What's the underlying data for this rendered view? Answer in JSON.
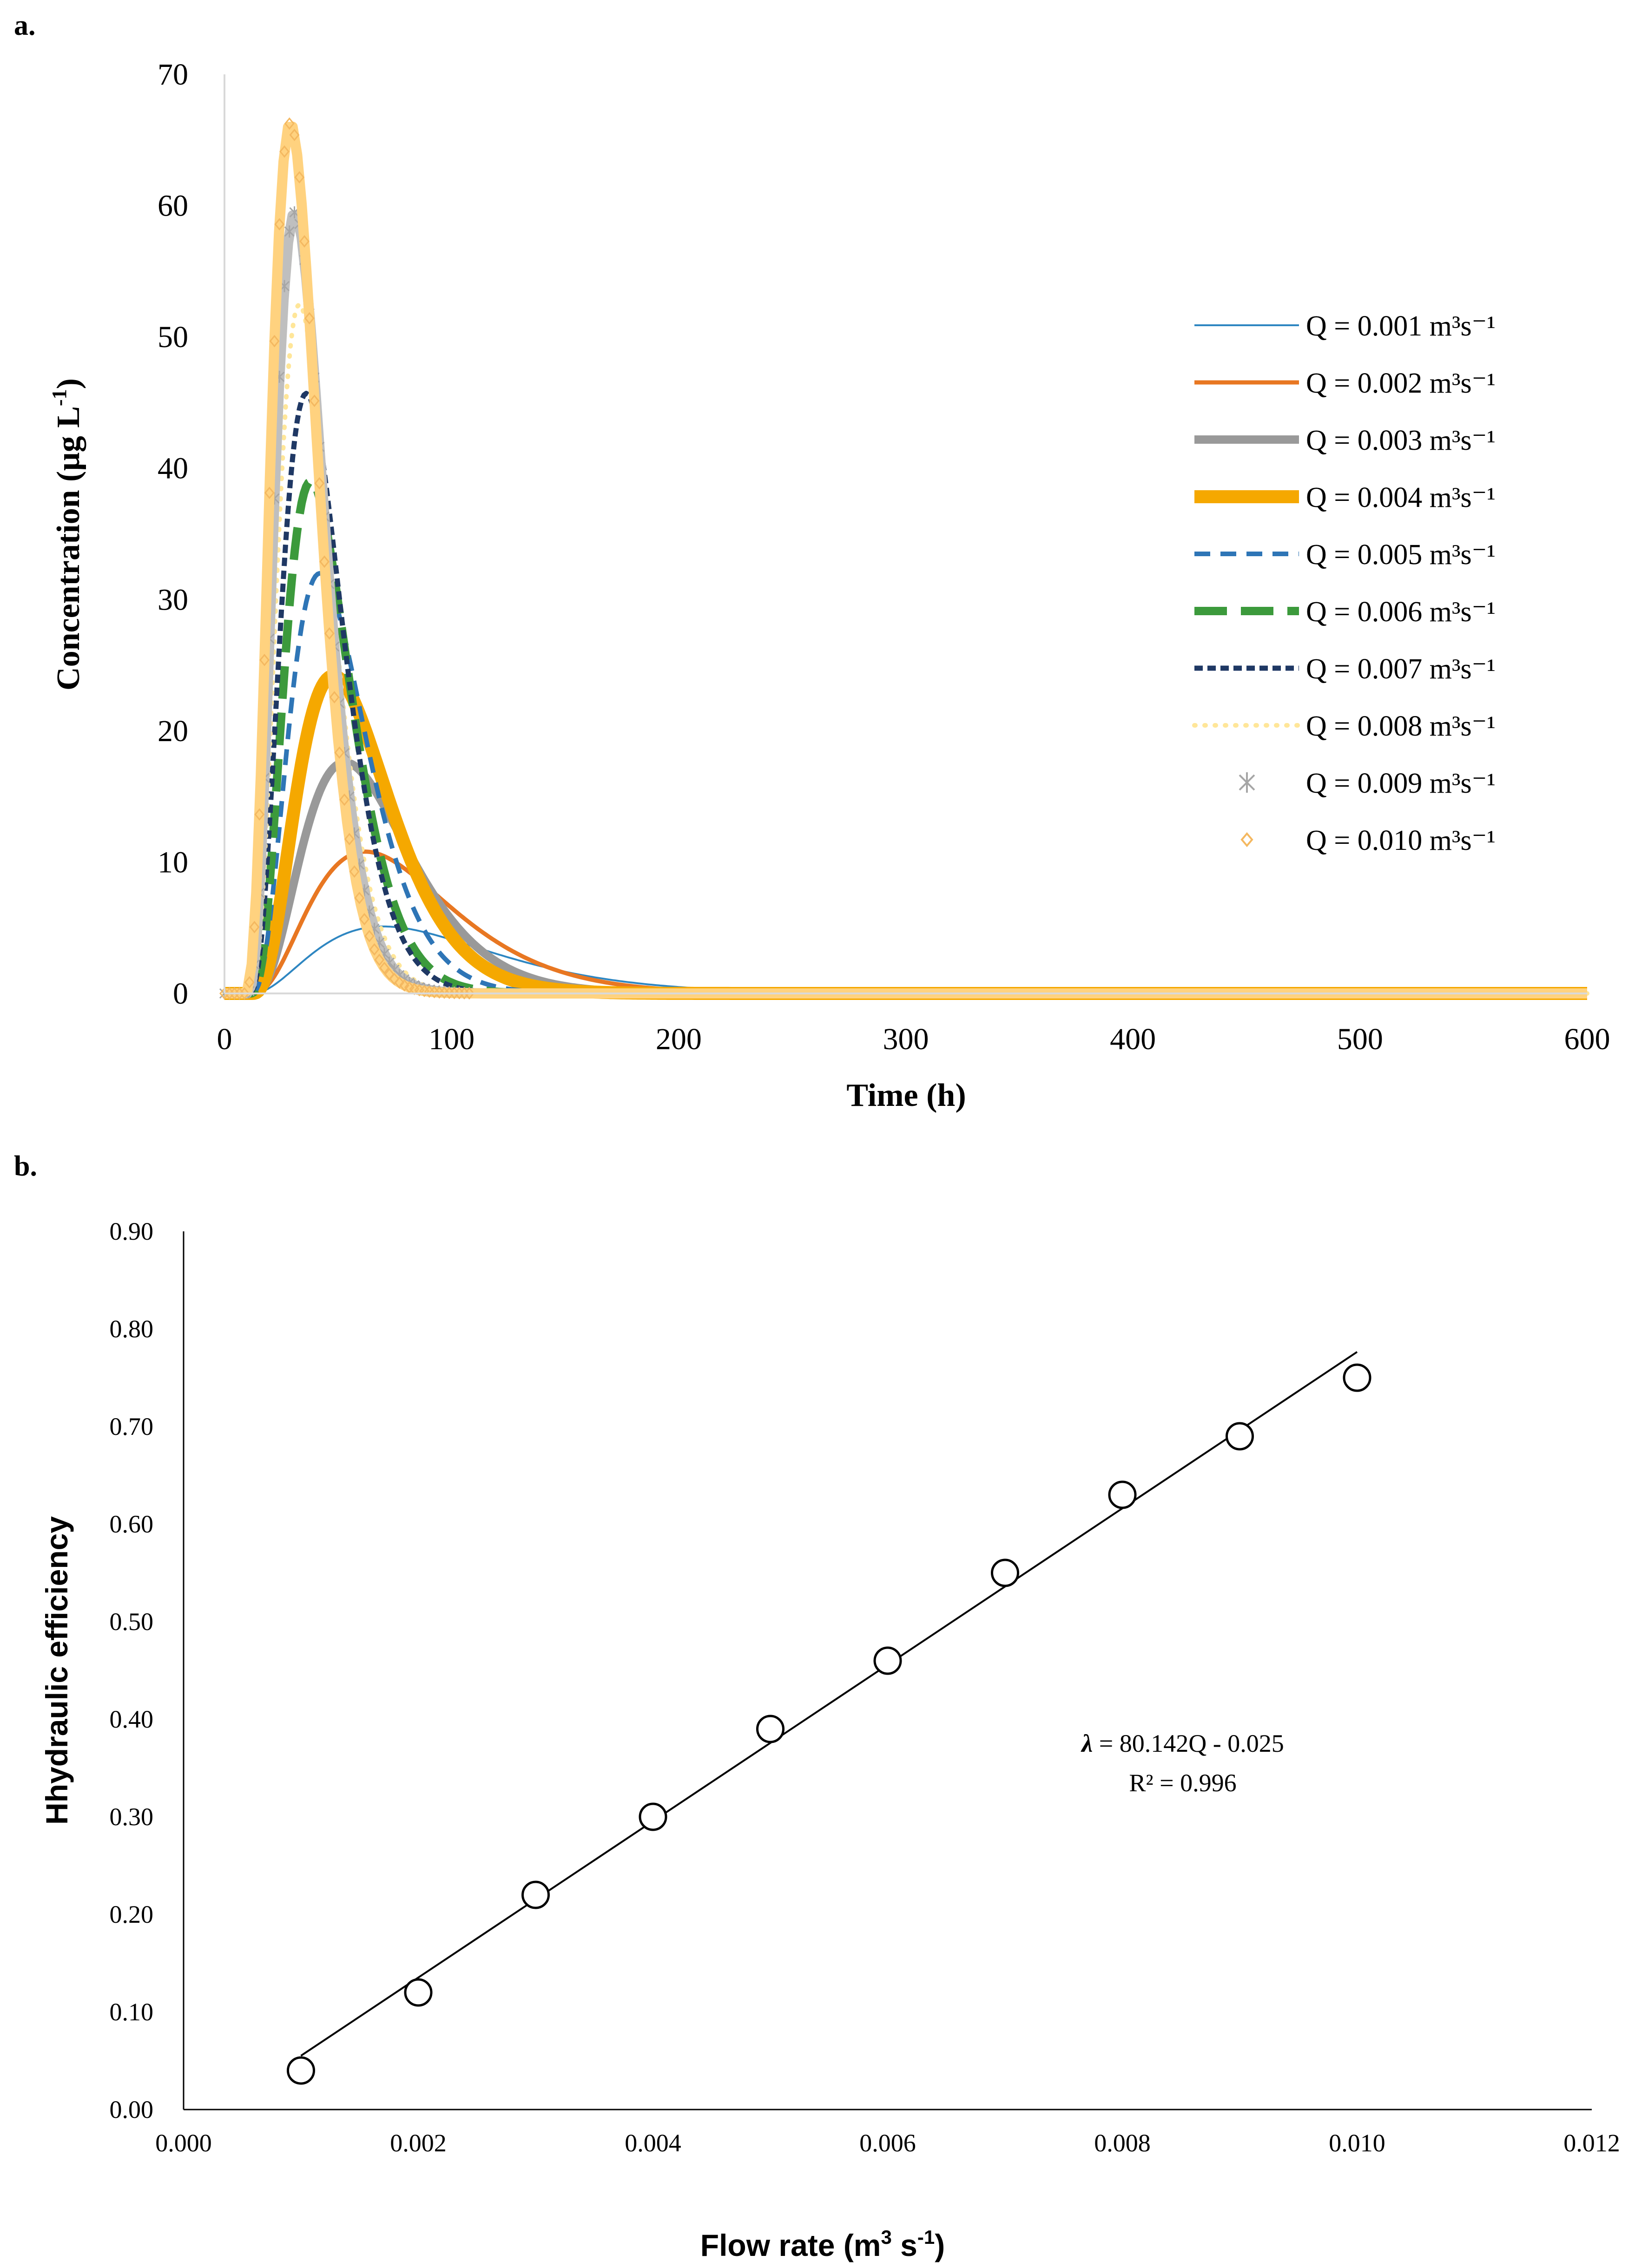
{
  "chart_data": [
    {
      "panel": "a.",
      "type": "line",
      "title": "",
      "xlabel": "Time (h)",
      "ylabel": "Concentration (µg L",
      "ylabel_sup": "-1",
      "ylabel_end": ")",
      "xlim": [
        0,
        600
      ],
      "ylim": [
        0,
        70
      ],
      "xticks": [
        "0",
        "100",
        "200",
        "300",
        "400",
        "500",
        "600"
      ],
      "yticks": [
        "0",
        "10",
        "20",
        "30",
        "40",
        "50",
        "60",
        "70"
      ],
      "legend_position": "right",
      "model": "gamma-shaped residence time curve: C(t) = peak at t_peak, starting at t_start, long tail",
      "series": [
        {
          "name": "Q = 0.001 m³s⁻¹",
          "style": "solid-thin",
          "color": "#2E86C1",
          "t_start": 12,
          "t_peak": 70,
          "peak": 5.1,
          "shape": 2.2
        },
        {
          "name": "Q = 0.002 m³s⁻¹",
          "style": "solid-medium",
          "color": "#E87722",
          "t_start": 12,
          "t_peak": 62,
          "peak": 10.8,
          "shape": 2.6
        },
        {
          "name": "Q = 0.003 m³s⁻¹",
          "style": "solid-thick",
          "color": "#999999",
          "t_start": 12,
          "t_peak": 53,
          "peak": 17.6,
          "shape": 3.0
        },
        {
          "name": "Q = 0.004 m³s⁻¹",
          "style": "solid-thicker",
          "color": "#F5A800",
          "t_start": 12,
          "t_peak": 48,
          "peak": 24.2,
          "shape": 3.1
        },
        {
          "name": "Q = 0.005 m³s⁻¹",
          "style": "dash",
          "color": "#2E75B6",
          "t_start": 11,
          "t_peak": 42,
          "peak": 32.0,
          "shape": 3.3
        },
        {
          "name": "Q = 0.006 m³s⁻¹",
          "style": "long-dash",
          "color": "#3C9A3C",
          "t_start": 11,
          "t_peak": 38,
          "peak": 39.0,
          "shape": 3.5
        },
        {
          "name": "Q = 0.007 m³s⁻¹",
          "style": "short-dash",
          "color": "#1F3864",
          "t_start": 10,
          "t_peak": 36,
          "peak": 45.7,
          "shape": 3.6
        },
        {
          "name": "Q = 0.008 m³s⁻¹",
          "style": "dots",
          "color": "#FFE699",
          "t_start": 10,
          "t_peak": 33,
          "peak": 52.5,
          "shape": 3.8
        },
        {
          "name": "Q = 0.009 m³s⁻¹",
          "style": "star-markers",
          "color": "#BFBFBF",
          "t_start": 9,
          "t_peak": 31,
          "peak": 59.5,
          "shape": 3.9
        },
        {
          "name": "Q = 0.010 m³s⁻¹",
          "style": "diamond-markers",
          "color": "#FFD27F",
          "t_start": 8,
          "t_peak": 29,
          "peak": 66.3,
          "shape": 4.0
        }
      ]
    },
    {
      "panel": "b.",
      "type": "scatter",
      "title": "",
      "xlabel": "Flow rate (m",
      "xlabel_sup1": "3",
      "xlabel_mid": " s",
      "xlabel_sup2": "-1",
      "xlabel_end": ")",
      "ylabel": "Hhydraulic efficiency",
      "xlim": [
        0,
        0.012
      ],
      "ylim": [
        0,
        0.9
      ],
      "xticks": [
        "0.000",
        "0.002",
        "0.004",
        "0.006",
        "0.008",
        "0.010",
        "0.012"
      ],
      "yticks": [
        "0.00",
        "0.10",
        "0.20",
        "0.30",
        "0.40",
        "0.50",
        "0.60",
        "0.70",
        "0.80",
        "0.90"
      ],
      "x": [
        0.001,
        0.002,
        0.003,
        0.004,
        0.005,
        0.006,
        0.007,
        0.008,
        0.009,
        0.01
      ],
      "y": [
        0.04,
        0.12,
        0.22,
        0.3,
        0.39,
        0.46,
        0.55,
        0.63,
        0.69,
        0.75
      ],
      "trendline": {
        "slope": 80.142,
        "intercept": -0.025,
        "x_range": [
          0.001,
          0.01
        ]
      },
      "equation_symbol": "λ",
      "equation_text": " = 80.142Q - 0.025",
      "r2_text": "R² = 0.996"
    }
  ]
}
